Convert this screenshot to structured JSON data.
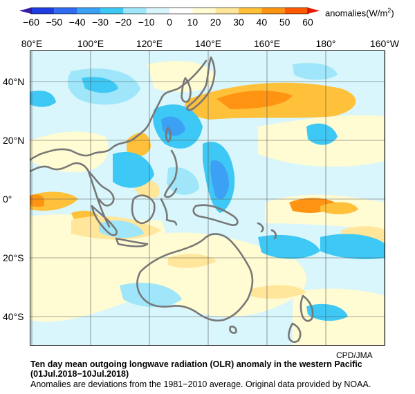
{
  "colorbar": {
    "units_prefix": "anomalies(W/m",
    "units_sup": "2",
    "units_suffix": ")",
    "ticks": [
      "−60",
      "−50",
      "−40",
      "−30",
      "−20",
      "−10",
      "0",
      "10",
      "20",
      "30",
      "40",
      "50",
      "60"
    ],
    "colors": [
      "#1e3de0",
      "#2f6af0",
      "#3ca0f5",
      "#3ec8f5",
      "#9fe6fa",
      "#d8f6fb",
      "#ffffff",
      "#fffbd2",
      "#ffe69a",
      "#ffc03a",
      "#ff9413",
      "#ff5a00",
      "#e81800"
    ]
  },
  "map": {
    "lon_labels": [
      "80°E",
      "100°E",
      "120°E",
      "140°E",
      "160°E",
      "180°",
      "160°W"
    ],
    "lat_labels": [
      "40°N",
      "20°N",
      "0°",
      "20°S",
      "40°S"
    ],
    "coastline_color": "#777777",
    "grid_color": "#555555"
  },
  "footer": {
    "credit": "CPD/JMA",
    "title": "Ten day mean outgoing longwave radiation (OLR) anomaly in the western Pacific (01Jul.2018−10Jul.2018)",
    "subtitle": "Anomalies are deviations from the 1981−2010 average. Original data provided by NOAA."
  }
}
